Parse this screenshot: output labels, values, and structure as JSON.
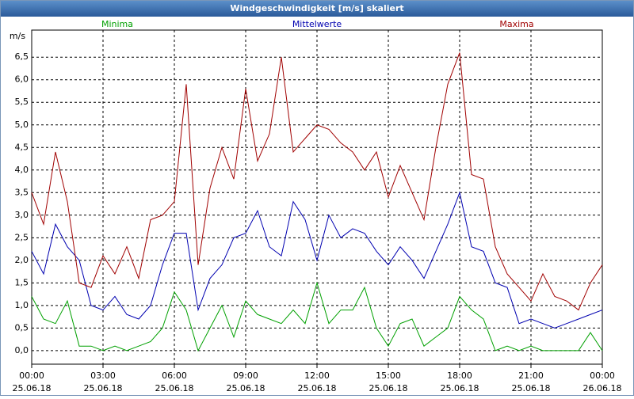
{
  "chart_data": {
    "type": "line",
    "title": "Windgeschwindigkeit [m/s] skaliert",
    "y_label": "m/s",
    "x": [
      0,
      0.5,
      1,
      1.5,
      2,
      2.5,
      3,
      3.5,
      4,
      4.5,
      5,
      5.5,
      6,
      6.5,
      7,
      7.5,
      8,
      8.5,
      9,
      9.5,
      10,
      10.5,
      11,
      11.5,
      12,
      12.5,
      13,
      13.5,
      14,
      14.5,
      15,
      15.5,
      16,
      16.5,
      17,
      17.5,
      18,
      18.5,
      19,
      19.5,
      20,
      20.5,
      21,
      21.5,
      22,
      22.5,
      23,
      23.5,
      24
    ],
    "series": [
      {
        "name": "Minima",
        "color": "#00a000",
        "values": [
          1.2,
          0.7,
          0.6,
          1.1,
          0.1,
          0.1,
          0.0,
          0.1,
          0.0,
          0.1,
          0.2,
          0.5,
          1.3,
          0.9,
          0.0,
          0.5,
          1.0,
          0.3,
          1.1,
          0.8,
          0.7,
          0.6,
          0.9,
          0.6,
          1.5,
          0.6,
          0.9,
          0.9,
          1.4,
          0.5,
          0.1,
          0.6,
          0.7,
          0.1,
          0.3,
          0.5,
          1.2,
          0.9,
          0.7,
          0.0,
          0.1,
          0.0,
          0.1,
          0.0,
          0.0,
          0.0,
          0.0,
          0.4,
          0.0
        ]
      },
      {
        "name": "Mittelwerte",
        "color": "#0000b0",
        "values": [
          2.2,
          1.7,
          2.8,
          2.3,
          2.0,
          1.0,
          0.9,
          1.2,
          0.8,
          0.7,
          1.0,
          1.9,
          2.6,
          2.6,
          0.9,
          1.6,
          1.9,
          2.5,
          2.6,
          3.1,
          2.3,
          2.1,
          3.3,
          2.9,
          2.0,
          3.0,
          2.5,
          2.7,
          2.6,
          2.2,
          1.9,
          2.3,
          2.0,
          1.6,
          2.2,
          2.8,
          3.5,
          2.3,
          2.2,
          1.5,
          1.4,
          0.6,
          0.7,
          0.6,
          0.5,
          0.6,
          0.7,
          0.8,
          0.9
        ]
      },
      {
        "name": "Maxima",
        "color": "#a00000",
        "values": [
          3.5,
          2.8,
          4.4,
          3.3,
          1.5,
          1.4,
          2.1,
          1.7,
          2.3,
          1.6,
          2.9,
          3.0,
          3.3,
          5.9,
          1.9,
          3.6,
          4.5,
          3.8,
          5.8,
          4.2,
          4.8,
          6.5,
          4.4,
          4.7,
          5.0,
          4.9,
          4.6,
          4.4,
          4.0,
          4.4,
          3.4,
          4.1,
          3.5,
          2.9,
          4.5,
          5.9,
          6.6,
          3.9,
          3.8,
          2.3,
          1.7,
          1.4,
          1.1,
          1.7,
          1.2,
          1.1,
          0.9,
          1.5,
          1.9
        ]
      }
    ],
    "xlim": [
      0,
      24
    ],
    "xticks": [
      {
        "value": 0,
        "label": "00:00",
        "date": "25.06.18"
      },
      {
        "value": 3,
        "label": "03:00",
        "date": "25.06.18"
      },
      {
        "value": 6,
        "label": "06:00",
        "date": "25.06.18"
      },
      {
        "value": 9,
        "label": "09:00",
        "date": "25.06.18"
      },
      {
        "value": 12,
        "label": "12:00",
        "date": "25.06.18"
      },
      {
        "value": 15,
        "label": "15:00",
        "date": "25.06.18"
      },
      {
        "value": 18,
        "label": "18:00",
        "date": "25.06.18"
      },
      {
        "value": 21,
        "label": "21:00",
        "date": "25.06.18"
      },
      {
        "value": 24,
        "label": "00:00",
        "date": "26.06.18"
      }
    ],
    "ylim": [
      -0.3,
      7.1
    ],
    "yticks": [
      {
        "value": 0,
        "label": "0,0"
      },
      {
        "value": 0.5,
        "label": "0,5"
      },
      {
        "value": 1,
        "label": "1,0"
      },
      {
        "value": 1.5,
        "label": "1,5"
      },
      {
        "value": 2,
        "label": "2,0"
      },
      {
        "value": 2.5,
        "label": "2,5"
      },
      {
        "value": 3,
        "label": "3,0"
      },
      {
        "value": 3.5,
        "label": "3,5"
      },
      {
        "value": 4,
        "label": "4,0"
      },
      {
        "value": 4.5,
        "label": "4,5"
      },
      {
        "value": 5,
        "label": "5,0"
      },
      {
        "value": 5.5,
        "label": "5,5"
      },
      {
        "value": 6,
        "label": "6,0"
      },
      {
        "value": 6.5,
        "label": "6,5"
      }
    ],
    "grid": true
  }
}
